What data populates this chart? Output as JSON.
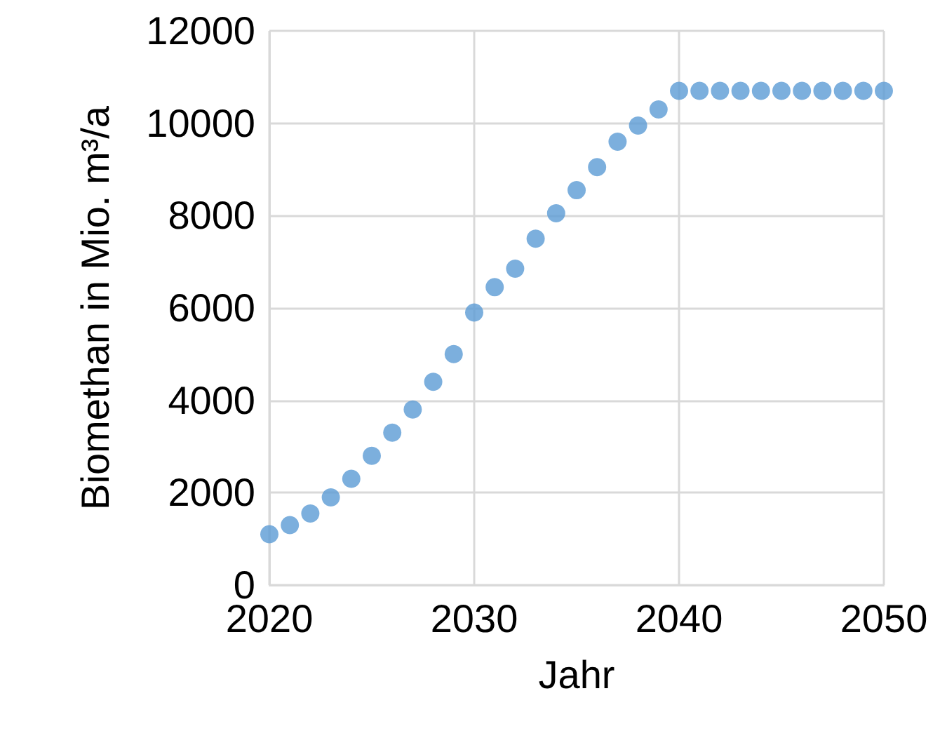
{
  "chart_data": {
    "type": "scatter",
    "xlabel": "Jahr",
    "ylabel": "Biomethan in Mio. m³/a",
    "x": [
      2020,
      2021,
      2022,
      2023,
      2024,
      2025,
      2026,
      2027,
      2028,
      2029,
      2030,
      2031,
      2032,
      2033,
      2034,
      2035,
      2036,
      2037,
      2038,
      2039,
      2040,
      2041,
      2042,
      2043,
      2044,
      2045,
      2046,
      2047,
      2048,
      2049,
      2050
    ],
    "series": [
      {
        "color": "#5b9bd5",
        "values": [
          1100,
          1300,
          1550,
          1900,
          2300,
          2800,
          3300,
          3800,
          4400,
          5000,
          5900,
          6450,
          6850,
          7500,
          8050,
          8550,
          9050,
          9600,
          9950,
          10300,
          10700,
          10700,
          10700,
          10700,
          10700,
          10700,
          10700,
          10700,
          10700,
          10700,
          10700
        ]
      }
    ],
    "xlim": [
      2020,
      2050
    ],
    "xticks": [
      2020,
      2030,
      2040,
      2050
    ],
    "ylim": [
      0,
      12000
    ],
    "yticks": [
      0,
      2000,
      4000,
      6000,
      8000,
      10000,
      12000
    ],
    "grid": true,
    "marker": "circle"
  }
}
